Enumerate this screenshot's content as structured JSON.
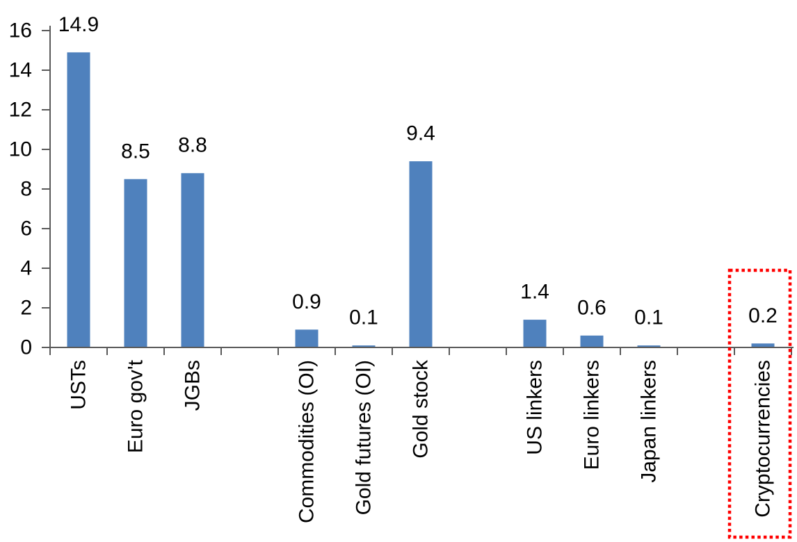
{
  "figure": {
    "background": "#FFFFFF"
  },
  "chart_data": {
    "type": "bar",
    "title": "",
    "xlabel": "",
    "ylabel": "",
    "categories": [
      "USTs",
      "Euro gov't",
      "JGBs",
      "",
      "Commodities (OI)",
      "Gold futures (OI)",
      "Gold stock",
      "",
      "US linkers",
      "Euro linkers",
      "Japan linkers",
      "",
      "Cryptocurrencies"
    ],
    "values": [
      14.9,
      8.5,
      8.8,
      null,
      0.9,
      0.1,
      9.4,
      null,
      1.4,
      0.6,
      0.1,
      null,
      0.2
    ],
    "data_labels": [
      "14.9",
      "8.5",
      "8.8",
      "",
      "0.9",
      "0.1",
      "9.4",
      "",
      "1.4",
      "0.6",
      "0.1",
      "",
      "0.2"
    ],
    "ylim": [
      0,
      16
    ],
    "yticks": [
      0,
      2,
      4,
      6,
      8,
      10,
      12,
      14,
      16
    ],
    "grid": false,
    "legend": false,
    "bar_color": "#4F81BD",
    "axis_color": "#595959",
    "text_color": "#000000",
    "highlight": {
      "category": "Cryptocurrencies",
      "shape": "dotted-rectangle",
      "color": "#FF0000"
    }
  }
}
